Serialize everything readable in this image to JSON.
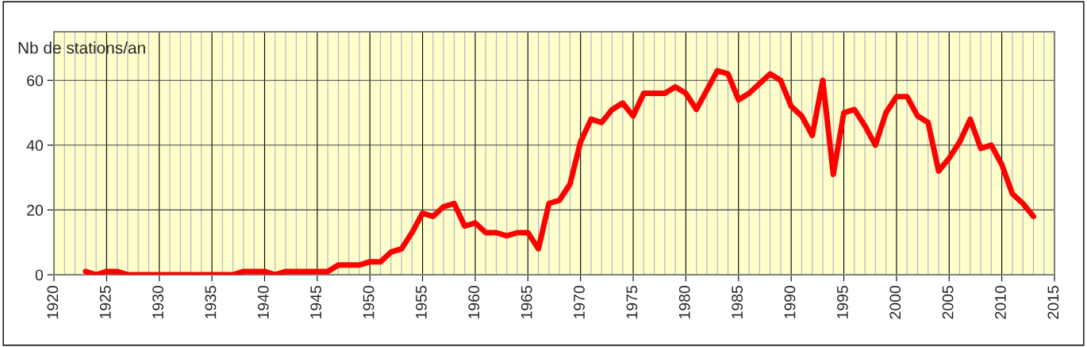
{
  "chart_data": {
    "type": "line",
    "ylabel": "Nb de stations/an",
    "x": [
      1923,
      1924,
      1925,
      1926,
      1927,
      1928,
      1929,
      1930,
      1931,
      1932,
      1933,
      1934,
      1935,
      1936,
      1937,
      1938,
      1939,
      1940,
      1941,
      1942,
      1943,
      1944,
      1945,
      1946,
      1947,
      1948,
      1949,
      1950,
      1951,
      1952,
      1953,
      1954,
      1955,
      1956,
      1957,
      1958,
      1959,
      1960,
      1961,
      1962,
      1963,
      1964,
      1965,
      1966,
      1967,
      1968,
      1969,
      1970,
      1971,
      1972,
      1973,
      1974,
      1975,
      1976,
      1977,
      1978,
      1979,
      1980,
      1981,
      1982,
      1983,
      1984,
      1985,
      1986,
      1987,
      1988,
      1989,
      1990,
      1991,
      1992,
      1993,
      1994,
      1995,
      1996,
      1997,
      1998,
      1999,
      2000,
      2001,
      2002,
      2003,
      2004,
      2005,
      2006,
      2007,
      2008,
      2009,
      2010,
      2011,
      2012,
      2013
    ],
    "series": [
      {
        "color": "#ff0000",
        "values": [
          1,
          0,
          1,
          1,
          0,
          0,
          0,
          0,
          0,
          0,
          0,
          0,
          0,
          0,
          0,
          1,
          1,
          1,
          0,
          1,
          1,
          1,
          1,
          1,
          3,
          3,
          3,
          4,
          4,
          7,
          8,
          13,
          19,
          18,
          21,
          22,
          15,
          16,
          13,
          13,
          12,
          13,
          13,
          8,
          22,
          23,
          28,
          41,
          48,
          47,
          51,
          53,
          49,
          56,
          56,
          56,
          58,
          56,
          51,
          57,
          63,
          62,
          54,
          56,
          59,
          62,
          60,
          52,
          49,
          43,
          60,
          31,
          50,
          51,
          46,
          40,
          50,
          55,
          55,
          49,
          47,
          32,
          36,
          41,
          48,
          39,
          40,
          34,
          25,
          22,
          18
        ]
      }
    ],
    "xlim": [
      1920,
      2015
    ],
    "xticks": [
      1920,
      1925,
      1930,
      1935,
      1940,
      1945,
      1950,
      1955,
      1960,
      1965,
      1970,
      1975,
      1980,
      1985,
      1990,
      1995,
      2000,
      2005,
      2010,
      2015
    ],
    "ylim": [
      0,
      75
    ],
    "yticks": [
      0,
      20,
      40,
      60
    ],
    "grid": true,
    "marker": "none",
    "line_style": "solid"
  }
}
